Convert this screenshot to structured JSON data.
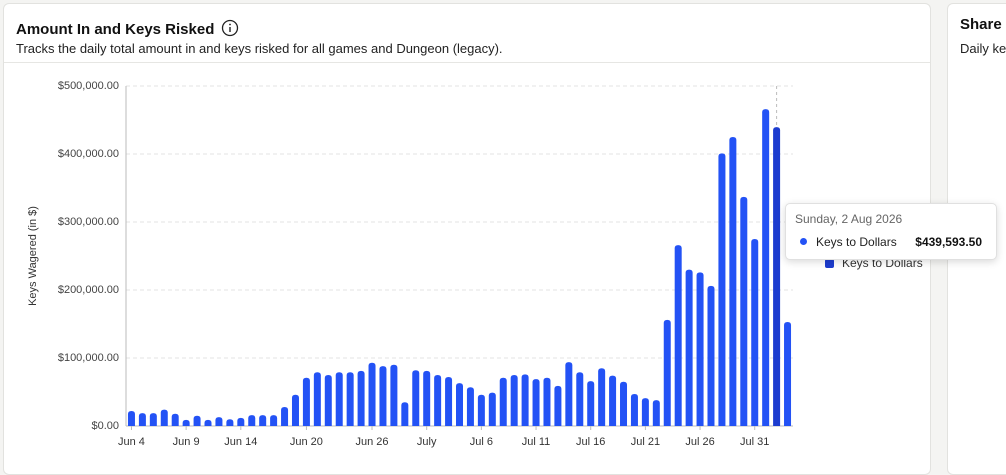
{
  "chart_data": {
    "type": "bar",
    "title": "Amount In and Keys Risked",
    "subtitle": "Tracks the daily total amount in and keys risked for all games and Dungeon (legacy).",
    "ylabel": "Keys Wagered (in $)",
    "categories": [
      "Jun 4",
      null,
      null,
      null,
      null,
      "Jun 9",
      null,
      null,
      null,
      null,
      "Jun 14",
      null,
      null,
      null,
      null,
      null,
      "Jun 20",
      null,
      null,
      null,
      null,
      null,
      "Jun 26",
      null,
      null,
      null,
      null,
      "July",
      null,
      null,
      null,
      null,
      "Jul 6",
      null,
      null,
      null,
      null,
      "Jul 11",
      null,
      null,
      null,
      null,
      "Jul 16",
      null,
      null,
      null,
      null,
      "Jul 21",
      null,
      null,
      null,
      null,
      "Jul 26",
      null,
      null,
      null,
      null,
      "Jul 31",
      null,
      null,
      null
    ],
    "series": [
      {
        "name": "Keys to Dollars",
        "color": "#2352f5",
        "values": [
          22000,
          19000,
          19000,
          24000,
          18000,
          9000,
          15000,
          9000,
          13000,
          10000,
          12000,
          16000,
          16000,
          16000,
          28000,
          46000,
          71000,
          79000,
          75000,
          79000,
          79000,
          81000,
          93000,
          88000,
          90000,
          35000,
          82000,
          81000,
          75000,
          72000,
          63000,
          57000,
          46000,
          49000,
          71000,
          75000,
          76000,
          69000,
          71000,
          59000,
          94000,
          79000,
          66000,
          85000,
          74000,
          65000,
          47000,
          41000,
          38000,
          156000,
          266000,
          230000,
          226000,
          206000,
          401000,
          425000,
          337000,
          275000,
          466000,
          439593.5,
          153000
        ]
      }
    ],
    "ylim": [
      0,
      500000
    ],
    "yticks": [
      {
        "value": 0,
        "label": "$0.00"
      },
      {
        "value": 100000,
        "label": "$100,000.00"
      },
      {
        "value": 200000,
        "label": "$200,000.00"
      },
      {
        "value": 300000,
        "label": "$300,000.00"
      },
      {
        "value": 400000,
        "label": "$400,000.00"
      },
      {
        "value": 500000,
        "label": "$500,000.00"
      }
    ],
    "grid": true,
    "tooltip": {
      "index": 59,
      "color": "#1c3ccf",
      "date": "Sunday, 2 Aug 2026",
      "series": "Keys to Dollars",
      "value": "$439,593.50"
    }
  },
  "side_card": {
    "title": "Share",
    "subtitle": "Daily ke"
  }
}
